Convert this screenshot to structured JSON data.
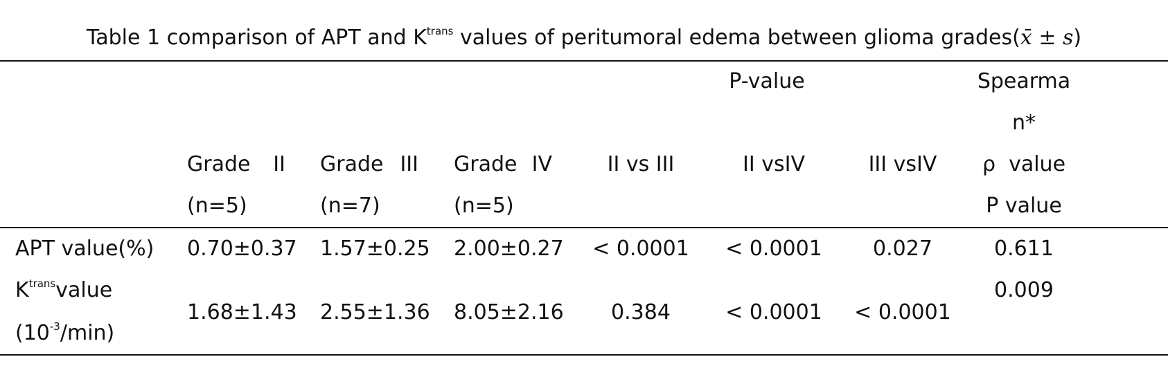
{
  "title": {
    "text": "Table 1 comparison of APT and K",
    "sup": "trans",
    "rest": " values of peritumoral edema between glioma grades(",
    "math": "x̄ ± s",
    "end": ")"
  },
  "header": {
    "p_value": "P-value",
    "spearman": [
      "Spearma",
      "n*",
      "ρ  value",
      "P value"
    ],
    "grades": [
      {
        "name": "Grade II",
        "n": "(n=5)"
      },
      {
        "name": "Grade III",
        "n": "(n=7)"
      },
      {
        "name": "Grade IV",
        "n": "(n=5)"
      }
    ],
    "comparisons": [
      "II vs III",
      "II vsIV",
      "III vsIV"
    ]
  },
  "table": {
    "rows": [
      {
        "label": "APT value(%)",
        "cells": [
          "0.70±0.37",
          "1.57±0.25",
          "2.00±0.27",
          "< 0.0001",
          "< 0.0001",
          "0.027",
          "0.611"
        ]
      },
      {
        "label": {
          "k": "K",
          "sup": "trans",
          "value": "value",
          "unit": "(10",
          "unit_sup": "-3",
          "unit_end": "/min)"
        },
        "cells": [
          "1.68±1.43",
          "2.55±1.36",
          "8.05±2.16",
          "0.384",
          "< 0.0001",
          "< 0.0001",
          "0.009"
        ]
      }
    ]
  }
}
